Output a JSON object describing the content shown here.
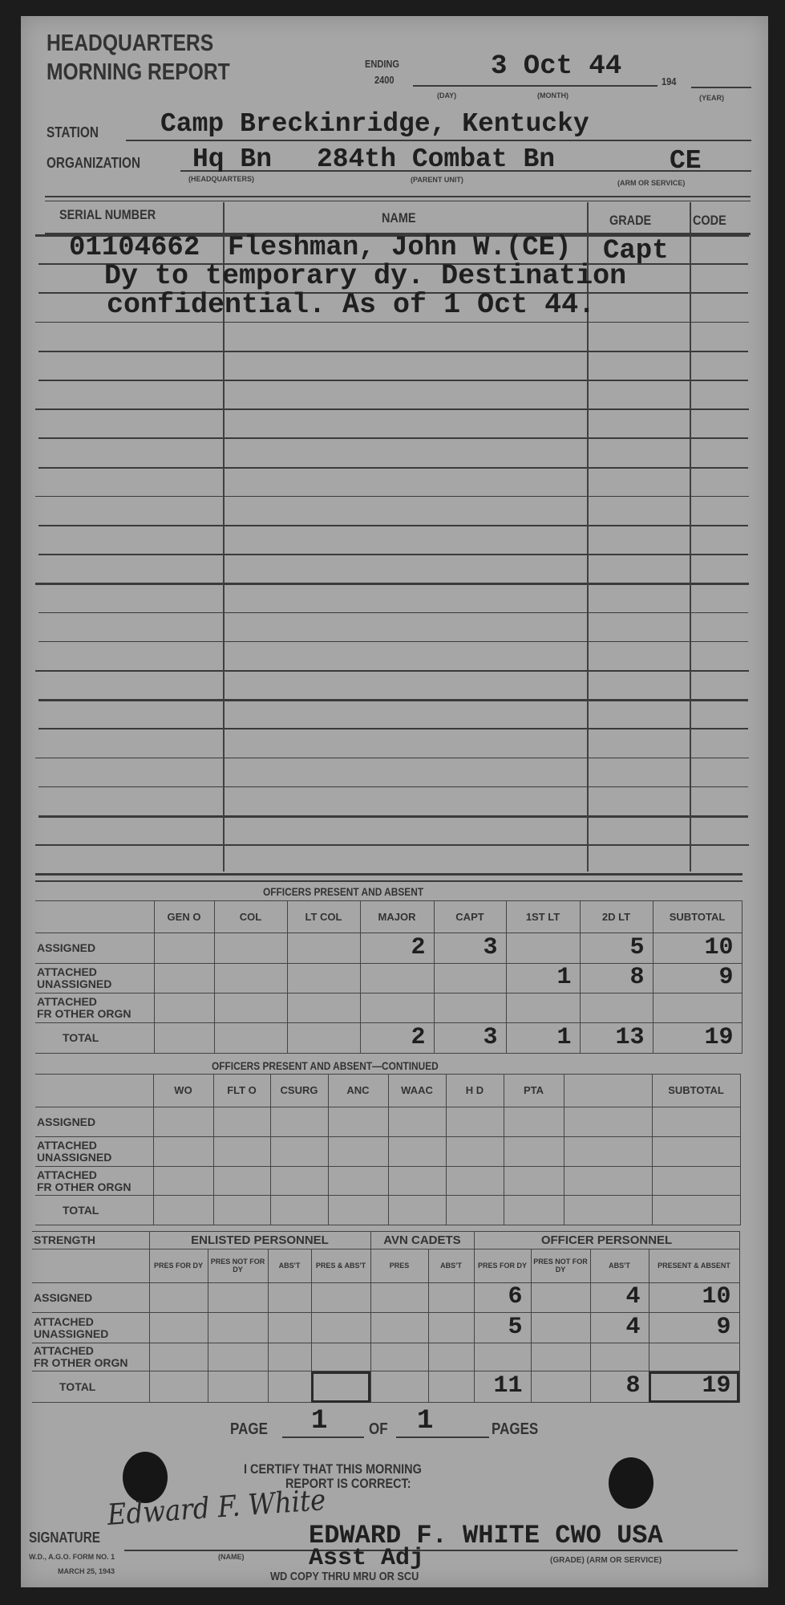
{
  "header": {
    "title_line1": "HEADQUARTERS",
    "title_line2": "MORNING REPORT",
    "ending_label": "ENDING",
    "ending_time": "2400",
    "date": "3 Oct 44",
    "year_prefix": "194",
    "day_label": "(DAY)",
    "month_label": "(MONTH)",
    "year_label": "(YEAR)"
  },
  "station": {
    "label": "STATION",
    "value": "Camp Breckinridge, Kentucky"
  },
  "organization": {
    "label": "ORGANIZATION",
    "headquarters": "Hq Bn",
    "parent_unit": "284th Combat Bn",
    "arm_or_service": "CE",
    "hq_label": "(HEADQUARTERS)",
    "parent_label": "(PARENT UNIT)",
    "arm_label": "(ARM OR SERVICE)"
  },
  "roster": {
    "headers": [
      "SERIAL NUMBER",
      "NAME",
      "GRADE",
      "CODE"
    ],
    "entry": {
      "serial": "01104662",
      "name": "Fleshman, John W.(CE)",
      "grade": "Capt",
      "remarks": [
        "Dy to temporary dy. Destination",
        "confidential.  As of 1 Oct 44."
      ]
    }
  },
  "officers": {
    "title": "OFFICERS PRESENT AND ABSENT",
    "columns": [
      "",
      "GEN O",
      "COL",
      "LT COL",
      "MAJOR",
      "CAPT",
      "1ST LT",
      "2D LT",
      "SUBTOTAL"
    ],
    "rows": [
      {
        "label": "ASSIGNED",
        "values": [
          "",
          "",
          "",
          "2",
          "3",
          "",
          "5",
          "10"
        ]
      },
      {
        "label": "ATTACHED UNASSIGNED",
        "values": [
          "",
          "",
          "",
          "",
          "",
          "1",
          "8",
          "9"
        ]
      },
      {
        "label": "ATTACHED FR OTHER ORGN",
        "values": [
          "",
          "",
          "",
          "",
          "",
          "",
          "",
          ""
        ]
      },
      {
        "label": "TOTAL",
        "values": [
          "",
          "",
          "",
          "2",
          "3",
          "1",
          "13",
          "19"
        ]
      }
    ]
  },
  "officers_continued": {
    "title": "OFFICERS PRESENT AND ABSENT—CONTINUED",
    "columns": [
      "",
      "WO",
      "FLT O",
      "CSURG",
      "ANC",
      "WAAC",
      "H D",
      "PTA",
      "",
      "SUBTOTAL"
    ],
    "rows": [
      {
        "label": "ASSIGNED"
      },
      {
        "label": "ATTACHED UNASSIGNED"
      },
      {
        "label": "ATTACHED FR OTHER ORGN"
      },
      {
        "label": "TOTAL"
      }
    ]
  },
  "strength": {
    "label": "STRENGTH",
    "groups": [
      "ENLISTED PERSONNEL",
      "AVN CADETS",
      "OFFICER PERSONNEL"
    ],
    "columns": [
      "PRES FOR DY",
      "PRES NOT FOR DY",
      "ABS'T",
      "PRES & ABS'T",
      "PRES",
      "ABS'T",
      "PRES FOR DY",
      "PRES NOT FOR DY",
      "ABS'T",
      "PRESENT & ABSENT"
    ],
    "rows": [
      {
        "label": "ASSIGNED",
        "values": [
          "",
          "",
          "",
          "",
          "",
          "",
          "6",
          "",
          "4",
          "10"
        ]
      },
      {
        "label": "ATTACHED UNASSIGNED",
        "values": [
          "",
          "",
          "",
          "",
          "",
          "",
          "5",
          "",
          "4",
          "9"
        ]
      },
      {
        "label": "ATTACHED FR OTHER ORGN",
        "values": [
          "",
          "",
          "",
          "",
          "",
          "",
          "",
          "",
          "",
          ""
        ]
      },
      {
        "label": "TOTAL",
        "values": [
          "",
          "",
          "",
          "",
          "",
          "",
          "11",
          "",
          "8",
          "19"
        ]
      }
    ]
  },
  "pages": {
    "page_label": "PAGE",
    "page": "1",
    "of_label": "OF",
    "total": "1",
    "pages_label": "PAGES"
  },
  "certification": {
    "line1": "I CERTIFY THAT THIS MORNING",
    "line2": "REPORT IS CORRECT:"
  },
  "signature": {
    "label": "SIGNATURE",
    "handwritten": "Edward F. White",
    "typed_name": "EDWARD F. WHITE CWO USA",
    "title": "Asst Adj",
    "name_label": "(NAME)",
    "grade_label": "(GRADE) (ARM OR SERVICE)",
    "form_no": "W.D., A.G.O. FORM NO. 1",
    "form_date": "MARCH 25, 1943",
    "copy_note": "WD COPY THRU MRU OR SCU"
  }
}
